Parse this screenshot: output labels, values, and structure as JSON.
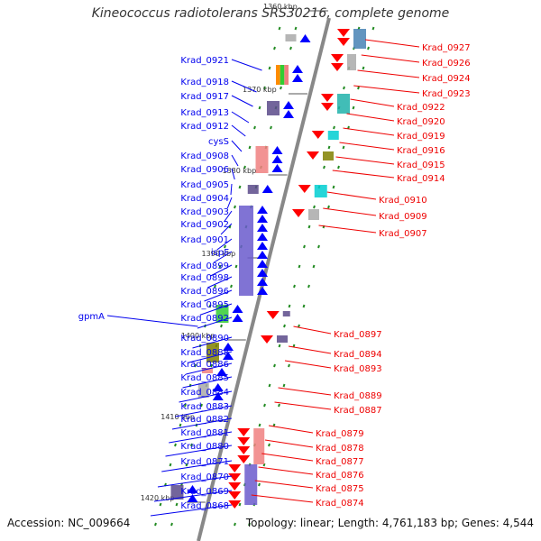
{
  "title": "Kineococcus radiotolerans SRS30216, complete genome",
  "footer": {
    "accession": "Accession: NC_009664",
    "summary": "Topology: linear; Length: 4,761,183 bp; Genes: 4,544"
  },
  "colors": {
    "axis": "#888888",
    "left_label": "#0000ee",
    "right_label": "#ee0000",
    "left_arrow": "#0000ff",
    "right_arrow": "#ff0000",
    "tick_mark": "#228b22",
    "kbp_label": "#333333",
    "block_purple": "#5a4a8a",
    "block_slate": "#6a5acd",
    "block_orange": "#ff8c00",
    "block_teal": "#20b2aa",
    "block_cyan": "#00ced1",
    "block_pink": "#f08080",
    "block_gray": "#a9a9a9",
    "block_olive": "#808000",
    "block_green": "#32cd32",
    "block_blue": "#4682b4"
  },
  "scale_labels": [
    "1360 kbp",
    "1370 kbp",
    "1380 kbp",
    "1390 kbp",
    "1400 kbp",
    "1410 kbp",
    "1420 kbp"
  ],
  "left_genes": [
    "Krad_0921",
    "Krad_0918",
    "Krad_0917",
    "Krad_0913",
    "Krad_0912",
    "cysS",
    "Krad_0908",
    "Krad_0906",
    "Krad_0905",
    "Krad_0904",
    "Krad_0903",
    "Krad_0902",
    "Krad_0901",
    "ispF",
    "Krad_0899",
    "Krad_0898",
    "Krad_0896",
    "Krad_0895",
    "gpmA",
    "Krad_0892",
    "Krad_0890",
    "Krad_0888",
    "Krad_0886",
    "Krad_0885",
    "Krad_0884",
    "Krad_0883",
    "Krad_0882",
    "Krad_0881",
    "Krad_0880",
    "Krad_0871",
    "Krad_0870",
    "Krad_0869",
    "Krad_0868"
  ],
  "right_genes": [
    "Krad_0927",
    "Krad_0926",
    "Krad_0924",
    "Krad_0923",
    "Krad_0922",
    "Krad_0920",
    "Krad_0919",
    "Krad_0916",
    "Krad_0915",
    "Krad_0914",
    "Krad_0910",
    "Krad_0909",
    "Krad_0907",
    "Krad_0897",
    "Krad_0894",
    "Krad_0893",
    "Krad_0889",
    "Krad_0887",
    "Krad_0879",
    "Krad_0878",
    "Krad_0877",
    "Krad_0876",
    "Krad_0875",
    "Krad_0874"
  ]
}
